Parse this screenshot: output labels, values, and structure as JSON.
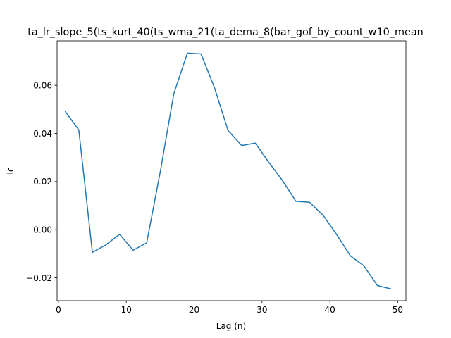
{
  "chart_data": {
    "type": "line",
    "title": "ta_lr_slope_5(ts_kurt_40(ts_wma_21(ta_dema_8(bar_gof_by_count_w10_mean",
    "xlabel": "Lag (n)",
    "ylabel": "ic",
    "xlim": [
      -0.2,
      51.2
    ],
    "ylim": [
      -0.0295,
      0.0785
    ],
    "xticks": [
      0,
      10,
      20,
      30,
      40,
      50
    ],
    "xtick_labels": [
      "0",
      "10",
      "20",
      "30",
      "40",
      "50"
    ],
    "yticks": [
      -0.02,
      0.0,
      0.02,
      0.04,
      0.06
    ],
    "ytick_labels": [
      "−0.02",
      "0.00",
      "0.02",
      "0.04",
      "0.06"
    ],
    "grid": false,
    "series": [
      {
        "color": "#1f77b4",
        "x": [
          1,
          3,
          5,
          7,
          9,
          11,
          13,
          15,
          17,
          19,
          21,
          23,
          25,
          27,
          29,
          31,
          33,
          35,
          37,
          39,
          41,
          43,
          45,
          47,
          49
        ],
        "y": [
          0.0491,
          0.0415,
          -0.0094,
          -0.0063,
          -0.0019,
          -0.0085,
          -0.0055,
          0.024,
          0.0565,
          0.0734,
          0.0731,
          0.059,
          0.0412,
          0.035,
          0.036,
          0.028,
          0.0205,
          0.0118,
          0.0114,
          0.006,
          -0.002,
          -0.0108,
          -0.015,
          -0.0232,
          -0.0246
        ]
      }
    ]
  }
}
